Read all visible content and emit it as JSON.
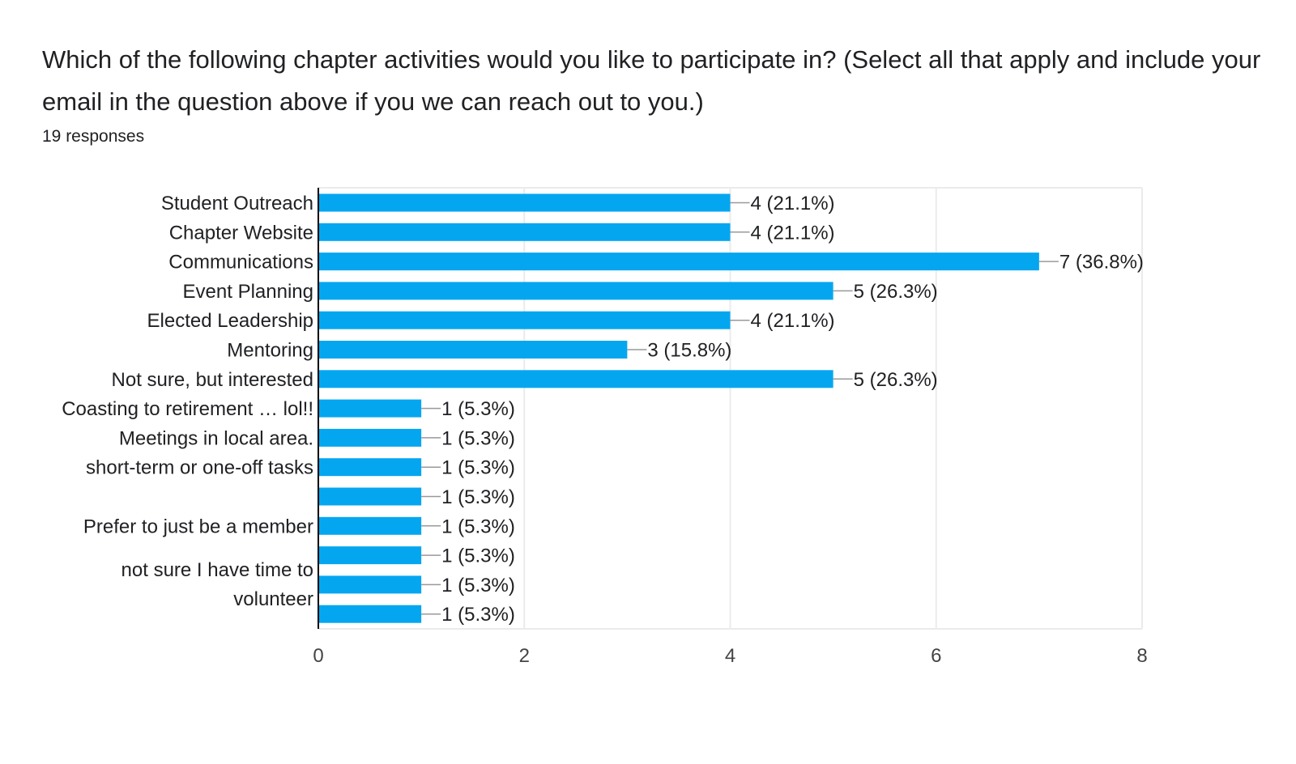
{
  "question": {
    "title": "Which of the following chapter activities would you like to participate in? (Select all that apply and include your email in the question above if you we can reach out to you.)",
    "responses": "19 responses"
  },
  "colors": {
    "bar": "#05A6F0",
    "grid": "#ebebeb",
    "axis": "#000000"
  },
  "chart_data": {
    "type": "bar",
    "orientation": "horizontal",
    "categories": [
      "Student Outreach",
      "Chapter Website",
      "Communications",
      "Event Planning",
      "Elected Leadership",
      "Mentoring",
      "Not sure, but interested",
      "Coasting to retirement … lol!!",
      "Meetings in local area.",
      "short-term or one-off tasks",
      "",
      "Prefer to just be a member",
      "",
      "",
      ""
    ],
    "values": [
      4,
      4,
      7,
      5,
      4,
      3,
      5,
      1,
      1,
      1,
      1,
      1,
      1,
      1,
      1
    ],
    "data_labels": [
      "4 (21.1%)",
      "4 (21.1%)",
      "7 (36.8%)",
      "5 (26.3%)",
      "4 (21.1%)",
      "3 (15.8%)",
      "5 (26.3%)",
      "1 (5.3%)",
      "1 (5.3%)",
      "1 (5.3%)",
      "1 (5.3%)",
      "1 (5.3%)",
      "1 (5.3%)",
      "1 (5.3%)",
      "1 (5.3%)"
    ],
    "extra_labels": [
      "not sure I have time to",
      "volunteer"
    ],
    "xlim": [
      0,
      8
    ],
    "xticks": [
      0,
      2,
      4,
      6,
      8
    ],
    "grid": true
  }
}
